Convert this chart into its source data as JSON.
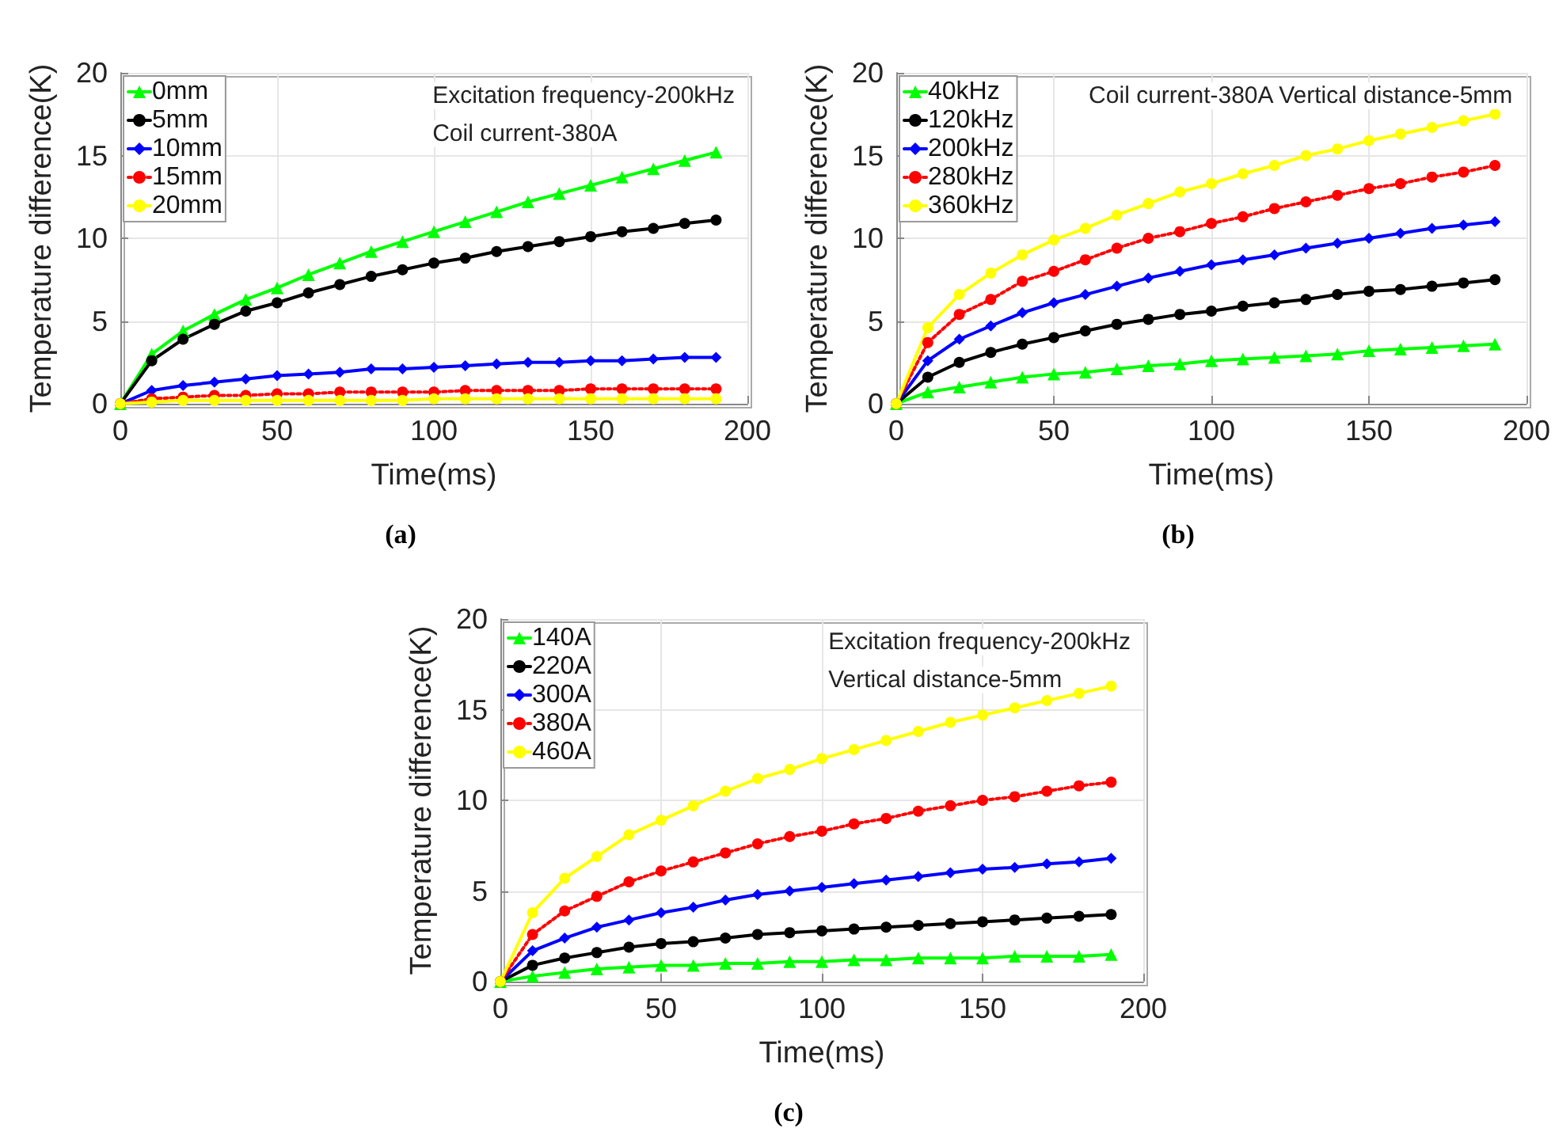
{
  "chart_data": [
    {
      "type": "line",
      "title": "(a)",
      "xlabel": "Time(ms)",
      "ylabel": "Temperature difference(K)",
      "annotations": [
        "Excitation frequency-200kHz",
        "Coil current-380A"
      ],
      "x": [
        0,
        10,
        20,
        30,
        40,
        50,
        60,
        70,
        80,
        90,
        100,
        110,
        120,
        130,
        140,
        150,
        160,
        170,
        180,
        190
      ],
      "xlim": [
        0,
        200
      ],
      "xticks": [
        0,
        50,
        100,
        150,
        200
      ],
      "ylim": [
        0,
        20
      ],
      "yticks": [
        0,
        5,
        10,
        15,
        20
      ],
      "grid": true,
      "legend": "top left",
      "series": [
        {
          "name": "0mm",
          "color": "#00ff00",
          "marker": "triangle",
          "line_style": "solid",
          "values": [
            0,
            3.0,
            4.4,
            5.4,
            6.3,
            7.0,
            7.8,
            8.5,
            9.2,
            9.8,
            10.4,
            11.0,
            11.6,
            12.2,
            12.7,
            13.2,
            13.7,
            14.2,
            14.7,
            15.2
          ]
        },
        {
          "name": "5mm",
          "color": "#000000",
          "marker": "circle",
          "line_style": "solid",
          "values": [
            0,
            2.6,
            3.9,
            4.8,
            5.6,
            6.1,
            6.7,
            7.2,
            7.7,
            8.1,
            8.5,
            8.8,
            9.2,
            9.5,
            9.8,
            10.1,
            10.4,
            10.6,
            10.9,
            11.1
          ]
        },
        {
          "name": "10mm",
          "color": "#0000ff",
          "marker": "diamond",
          "line_style": "solid",
          "values": [
            0,
            0.8,
            1.1,
            1.3,
            1.5,
            1.7,
            1.8,
            1.9,
            2.1,
            2.1,
            2.2,
            2.3,
            2.4,
            2.5,
            2.5,
            2.6,
            2.6,
            2.7,
            2.8,
            2.8
          ]
        },
        {
          "name": "15mm",
          "color": "#ff0000",
          "marker": "circle",
          "line_style": "dotted",
          "values": [
            0,
            0.3,
            0.4,
            0.5,
            0.5,
            0.6,
            0.6,
            0.7,
            0.7,
            0.7,
            0.7,
            0.8,
            0.8,
            0.8,
            0.8,
            0.9,
            0.9,
            0.9,
            0.9,
            0.9
          ]
        },
        {
          "name": "20mm",
          "color": "#ffff00",
          "marker": "circle",
          "line_style": "solid",
          "values": [
            0,
            0.1,
            0.2,
            0.2,
            0.2,
            0.2,
            0.2,
            0.2,
            0.2,
            0.2,
            0.3,
            0.3,
            0.3,
            0.3,
            0.3,
            0.3,
            0.3,
            0.3,
            0.3,
            0.3
          ]
        }
      ]
    },
    {
      "type": "line",
      "title": "(b)",
      "xlabel": "Time(ms)",
      "ylabel": "Temperature difference(K)",
      "annotations": [
        "Coil current-380A Vertical distance-5mm"
      ],
      "x": [
        0,
        10,
        20,
        30,
        40,
        50,
        60,
        70,
        80,
        90,
        100,
        110,
        120,
        130,
        140,
        150,
        160,
        170,
        180,
        190
      ],
      "xlim": [
        0,
        200
      ],
      "xticks": [
        0,
        50,
        100,
        150,
        200
      ],
      "ylim": [
        0,
        20
      ],
      "yticks": [
        0,
        5,
        10,
        15,
        20
      ],
      "grid": true,
      "legend": "top left",
      "series": [
        {
          "name": "40kHz",
          "color": "#00ff00",
          "marker": "triangle",
          "line_style": "solid",
          "values": [
            0,
            0.7,
            1.0,
            1.3,
            1.6,
            1.8,
            1.9,
            2.1,
            2.3,
            2.4,
            2.6,
            2.7,
            2.8,
            2.9,
            3.0,
            3.2,
            3.3,
            3.4,
            3.5,
            3.6
          ]
        },
        {
          "name": "120kHz",
          "color": "#000000",
          "marker": "circle",
          "line_style": "solid",
          "values": [
            0,
            1.6,
            2.5,
            3.1,
            3.6,
            4.0,
            4.4,
            4.8,
            5.1,
            5.4,
            5.6,
            5.9,
            6.1,
            6.3,
            6.6,
            6.8,
            6.9,
            7.1,
            7.3,
            7.5
          ]
        },
        {
          "name": "200kHz",
          "color": "#0000ff",
          "marker": "diamond",
          "line_style": "solid",
          "values": [
            0,
            2.6,
            3.9,
            4.7,
            5.5,
            6.1,
            6.6,
            7.1,
            7.6,
            8.0,
            8.4,
            8.7,
            9.0,
            9.4,
            9.7,
            10.0,
            10.3,
            10.6,
            10.8,
            11.0
          ]
        },
        {
          "name": "280kHz",
          "color": "#ff0000",
          "marker": "circle",
          "line_style": "dotted",
          "values": [
            0,
            3.7,
            5.4,
            6.3,
            7.4,
            8.0,
            8.7,
            9.4,
            10.0,
            10.4,
            10.9,
            11.3,
            11.8,
            12.2,
            12.6,
            13.0,
            13.3,
            13.7,
            14.0,
            14.4
          ]
        },
        {
          "name": "360kHz",
          "color": "#ffff00",
          "marker": "circle",
          "line_style": "solid",
          "values": [
            0,
            4.6,
            6.6,
            7.9,
            9.0,
            9.9,
            10.6,
            11.4,
            12.1,
            12.8,
            13.3,
            13.9,
            14.4,
            15.0,
            15.4,
            15.9,
            16.3,
            16.7,
            17.1,
            17.5
          ]
        }
      ]
    },
    {
      "type": "line",
      "title": "(c)",
      "xlabel": "Time(ms)",
      "ylabel": "Temperature difference(K)",
      "annotations": [
        "Excitation frequency-200kHz",
        "Vertical distance-5mm"
      ],
      "x": [
        0,
        10,
        20,
        30,
        40,
        50,
        60,
        70,
        80,
        90,
        100,
        110,
        120,
        130,
        140,
        150,
        160,
        170,
        180,
        190
      ],
      "xlim": [
        0,
        200
      ],
      "xticks": [
        0,
        50,
        100,
        150,
        200
      ],
      "ylim": [
        0,
        20
      ],
      "yticks": [
        0,
        5,
        10,
        15,
        20
      ],
      "grid": true,
      "legend": "top left",
      "series": [
        {
          "name": "140A",
          "color": "#00ff00",
          "marker": "triangle",
          "line_style": "solid",
          "values": [
            0,
            0.3,
            0.5,
            0.7,
            0.8,
            0.9,
            0.9,
            1.0,
            1.0,
            1.1,
            1.1,
            1.2,
            1.2,
            1.3,
            1.3,
            1.3,
            1.4,
            1.4,
            1.4,
            1.5
          ]
        },
        {
          "name": "220A",
          "color": "#000000",
          "marker": "circle",
          "line_style": "solid",
          "values": [
            0,
            0.9,
            1.3,
            1.6,
            1.9,
            2.1,
            2.2,
            2.4,
            2.6,
            2.7,
            2.8,
            2.9,
            3.0,
            3.1,
            3.2,
            3.3,
            3.4,
            3.5,
            3.6,
            3.7
          ]
        },
        {
          "name": "300A",
          "color": "#0000ff",
          "marker": "diamond",
          "line_style": "solid",
          "values": [
            0,
            1.7,
            2.4,
            3.0,
            3.4,
            3.8,
            4.1,
            4.5,
            4.8,
            5.0,
            5.2,
            5.4,
            5.6,
            5.8,
            6.0,
            6.2,
            6.3,
            6.5,
            6.6,
            6.8
          ]
        },
        {
          "name": "380A",
          "color": "#ff0000",
          "marker": "circle",
          "line_style": "dotted",
          "values": [
            0,
            2.6,
            3.9,
            4.7,
            5.5,
            6.1,
            6.6,
            7.1,
            7.6,
            8.0,
            8.3,
            8.7,
            9.0,
            9.4,
            9.7,
            10.0,
            10.2,
            10.5,
            10.8,
            11.0
          ]
        },
        {
          "name": "460A",
          "color": "#ffff00",
          "marker": "circle",
          "line_style": "solid",
          "values": [
            0,
            3.8,
            5.7,
            6.9,
            8.1,
            8.9,
            9.7,
            10.5,
            11.2,
            11.7,
            12.3,
            12.8,
            13.3,
            13.8,
            14.3,
            14.7,
            15.1,
            15.5,
            15.9,
            16.3
          ]
        }
      ]
    }
  ]
}
